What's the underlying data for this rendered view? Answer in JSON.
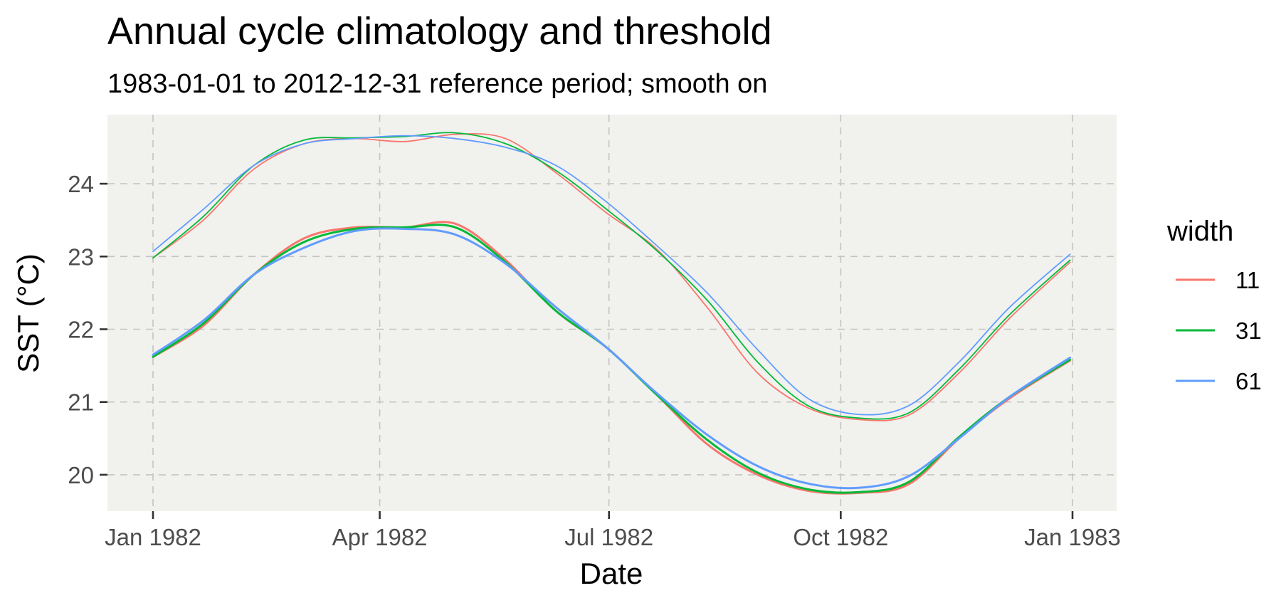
{
  "chart_data": {
    "type": "line",
    "title": "Annual cycle climatology and threshold",
    "subtitle": "1983-01-01 to 2012-12-31 reference period; smooth on",
    "xlabel": "Date",
    "ylabel": "SST (°C)",
    "xlim": [
      "1982-01-01",
      "1983-01-01"
    ],
    "ylim": [
      19.5,
      24.95
    ],
    "x_ticks": [
      {
        "date": "1982-01-01",
        "label": "Jan 1982"
      },
      {
        "date": "1982-04-01",
        "label": "Apr 1982"
      },
      {
        "date": "1982-07-01",
        "label": "Jul 1982"
      },
      {
        "date": "1982-10-01",
        "label": "Oct 1982"
      },
      {
        "date": "1983-01-01",
        "label": "Jan 1983"
      }
    ],
    "y_ticks": [
      20,
      21,
      22,
      23,
      24
    ],
    "grid": true,
    "panel_background": "#f1f1ee",
    "legend": {
      "title": "width",
      "position": "right"
    },
    "x": [
      "1982-01-01",
      "1982-01-21",
      "1982-02-10",
      "1982-03-02",
      "1982-03-22",
      "1982-04-11",
      "1982-05-01",
      "1982-05-21",
      "1982-06-10",
      "1982-06-30",
      "1982-07-20",
      "1982-08-09",
      "1982-08-29",
      "1982-09-18",
      "1982-10-08",
      "1982-10-28",
      "1982-11-17",
      "1982-12-07",
      "1982-12-31"
    ],
    "series": [
      {
        "name": "11",
        "color": "#f8766d",
        "role": "threshold",
        "values": [
          22.98,
          23.5,
          24.2,
          24.55,
          24.62,
          24.58,
          24.68,
          24.62,
          24.15,
          23.6,
          23.1,
          22.3,
          21.4,
          20.92,
          20.76,
          20.82,
          21.4,
          22.15,
          22.92
        ]
      },
      {
        "name": "31",
        "color": "#00ba38",
        "role": "threshold",
        "values": [
          22.98,
          23.55,
          24.25,
          24.6,
          24.63,
          24.65,
          24.7,
          24.55,
          24.18,
          23.65,
          23.08,
          22.4,
          21.55,
          20.95,
          20.78,
          20.85,
          21.45,
          22.2,
          22.95
        ]
      },
      {
        "name": "61",
        "color": "#619cff",
        "role": "threshold",
        "values": [
          23.07,
          23.65,
          24.25,
          24.55,
          24.62,
          24.66,
          24.62,
          24.5,
          24.25,
          23.75,
          23.15,
          22.5,
          21.72,
          21.05,
          20.83,
          20.95,
          21.55,
          22.3,
          23.03
        ]
      },
      {
        "name": "11",
        "color": "#f8766d",
        "role": "climatology",
        "values": [
          21.62,
          22.05,
          22.75,
          23.25,
          23.4,
          23.4,
          23.45,
          22.95,
          22.25,
          21.75,
          21.1,
          20.42,
          20.0,
          19.78,
          19.75,
          19.87,
          20.5,
          21.05,
          21.57
        ]
      },
      {
        "name": "31",
        "color": "#00ba38",
        "role": "climatology",
        "values": [
          21.62,
          22.08,
          22.75,
          23.2,
          23.38,
          23.4,
          23.4,
          22.92,
          22.25,
          21.75,
          21.1,
          20.48,
          20.03,
          19.8,
          19.76,
          19.9,
          20.52,
          21.07,
          21.58
        ]
      },
      {
        "name": "61",
        "color": "#619cff",
        "role": "climatology",
        "values": [
          21.65,
          22.12,
          22.75,
          23.12,
          23.35,
          23.38,
          23.3,
          22.9,
          22.3,
          21.75,
          21.12,
          20.55,
          20.12,
          19.88,
          19.82,
          19.98,
          20.5,
          21.07,
          21.61
        ]
      }
    ]
  }
}
